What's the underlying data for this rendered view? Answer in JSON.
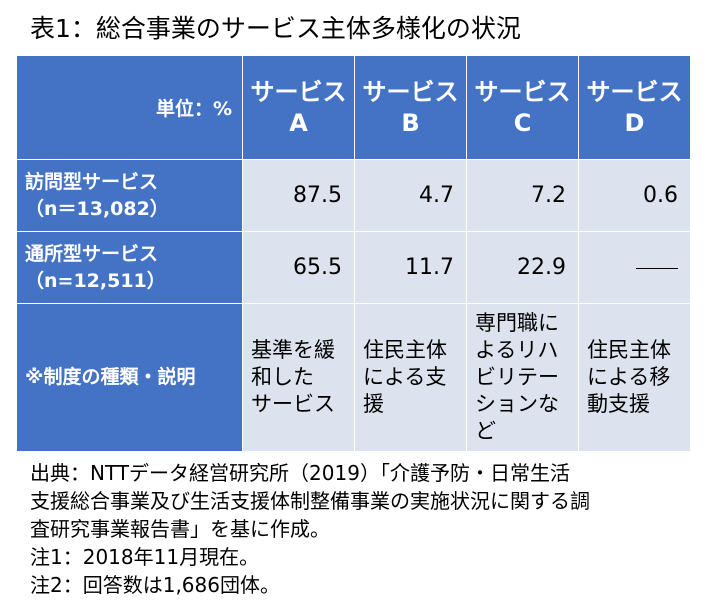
{
  "title": "表1：総合事業のサービス主体多様化の状況",
  "table": {
    "corner_label": "単位：%",
    "columns": [
      {
        "line1": "サービス",
        "line2": "A"
      },
      {
        "line1": "サービス",
        "line2": "B"
      },
      {
        "line1": "サービス",
        "line2": "C"
      },
      {
        "line1": "サービス",
        "line2": "D"
      }
    ],
    "rows": [
      {
        "label1": "訪問型サービス",
        "label2": "（n＝13,082）",
        "values": [
          "87.5",
          "4.7",
          "7.2",
          "0.6"
        ]
      },
      {
        "label1": "通所型サービス",
        "label2": "（n=12,511）",
        "values": [
          "65.5",
          "11.7",
          "22.9",
          ""
        ]
      }
    ],
    "desc_row": {
      "label": "※制度の種類・説明",
      "cells": [
        [
          "基準を緩",
          "和した",
          "サービス"
        ],
        [
          "住民主体",
          "による支",
          "援"
        ],
        [
          "専門職に",
          "よるリハ",
          "ビリテー",
          "ションな",
          "ど"
        ],
        [
          "住民主体",
          "による移",
          "動支援"
        ]
      ]
    }
  },
  "notes": [
    "出典：NTTデータ経営研究所（2019）「介護予防・日常生活",
    "支援総合事業及び生活支援体制整備事業の実施状況に関する調",
    "査研究事業報告書」を基に作成。",
    "注1：2018年11月現在。",
    "注2：回答数は1,686団体。"
  ]
}
